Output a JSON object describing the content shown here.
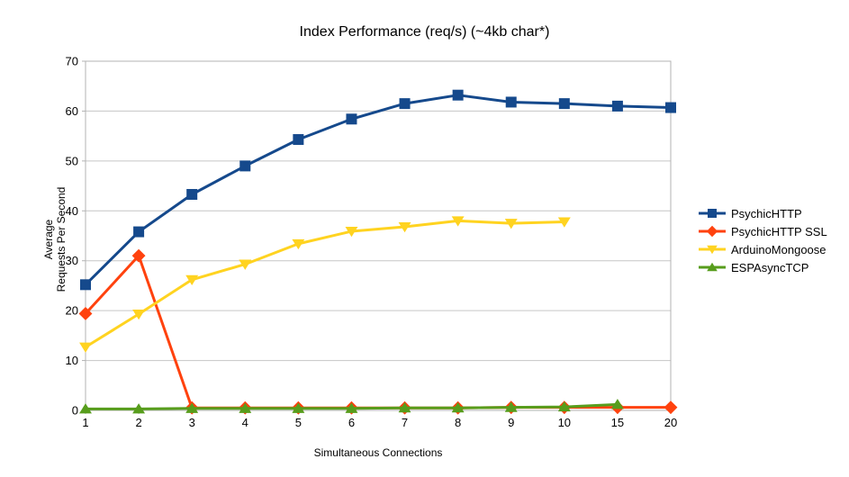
{
  "chart_data": {
    "type": "line",
    "title": "Index Performance (req/s) (~4kb char*)",
    "xlabel": "Simultaneous Connections",
    "ylabel_lines": [
      "Average",
      "Requests Per Second"
    ],
    "categories": [
      "1",
      "2",
      "3",
      "4",
      "5",
      "6",
      "7",
      "8",
      "9",
      "10",
      "15",
      "20"
    ],
    "ylim": [
      0,
      70
    ],
    "ytick_interval": 10,
    "ytick_labels": [
      "0",
      "10",
      "20",
      "30",
      "40",
      "50",
      "60",
      "70"
    ],
    "grid": "horizontal-only",
    "legend_position": "right",
    "colors": {
      "grid": "#c6c6c6",
      "axis": "#b3b3b3",
      "text": "#000000",
      "background": "#ffffff"
    },
    "series": [
      {
        "name": "PsychicHTTP",
        "color": "#15498c",
        "marker": "square",
        "values": [
          25.2,
          35.8,
          43.3,
          49.0,
          54.3,
          58.4,
          61.5,
          63.2,
          61.8,
          61.5,
          61.0,
          60.7
        ]
      },
      {
        "name": "PsychicHTTP SSL",
        "color": "#ff420e",
        "marker": "diamond",
        "values": [
          19.4,
          31.0,
          0.5,
          0.5,
          0.5,
          0.5,
          0.5,
          0.5,
          0.6,
          0.6,
          0.6,
          0.6
        ]
      },
      {
        "name": "ArduinoMongoose",
        "color": "#ffd320",
        "marker": "triangle-down",
        "values": [
          12.7,
          19.3,
          26.2,
          29.3,
          33.4,
          35.9,
          36.8,
          38.0,
          37.5,
          37.8,
          null,
          null
        ]
      },
      {
        "name": "ESPAsyncTCP",
        "color": "#579d1c",
        "marker": "triangle-up",
        "values": [
          0.3,
          0.3,
          0.4,
          0.4,
          0.4,
          0.4,
          0.5,
          0.5,
          0.6,
          0.7,
          1.2,
          null
        ]
      }
    ]
  }
}
